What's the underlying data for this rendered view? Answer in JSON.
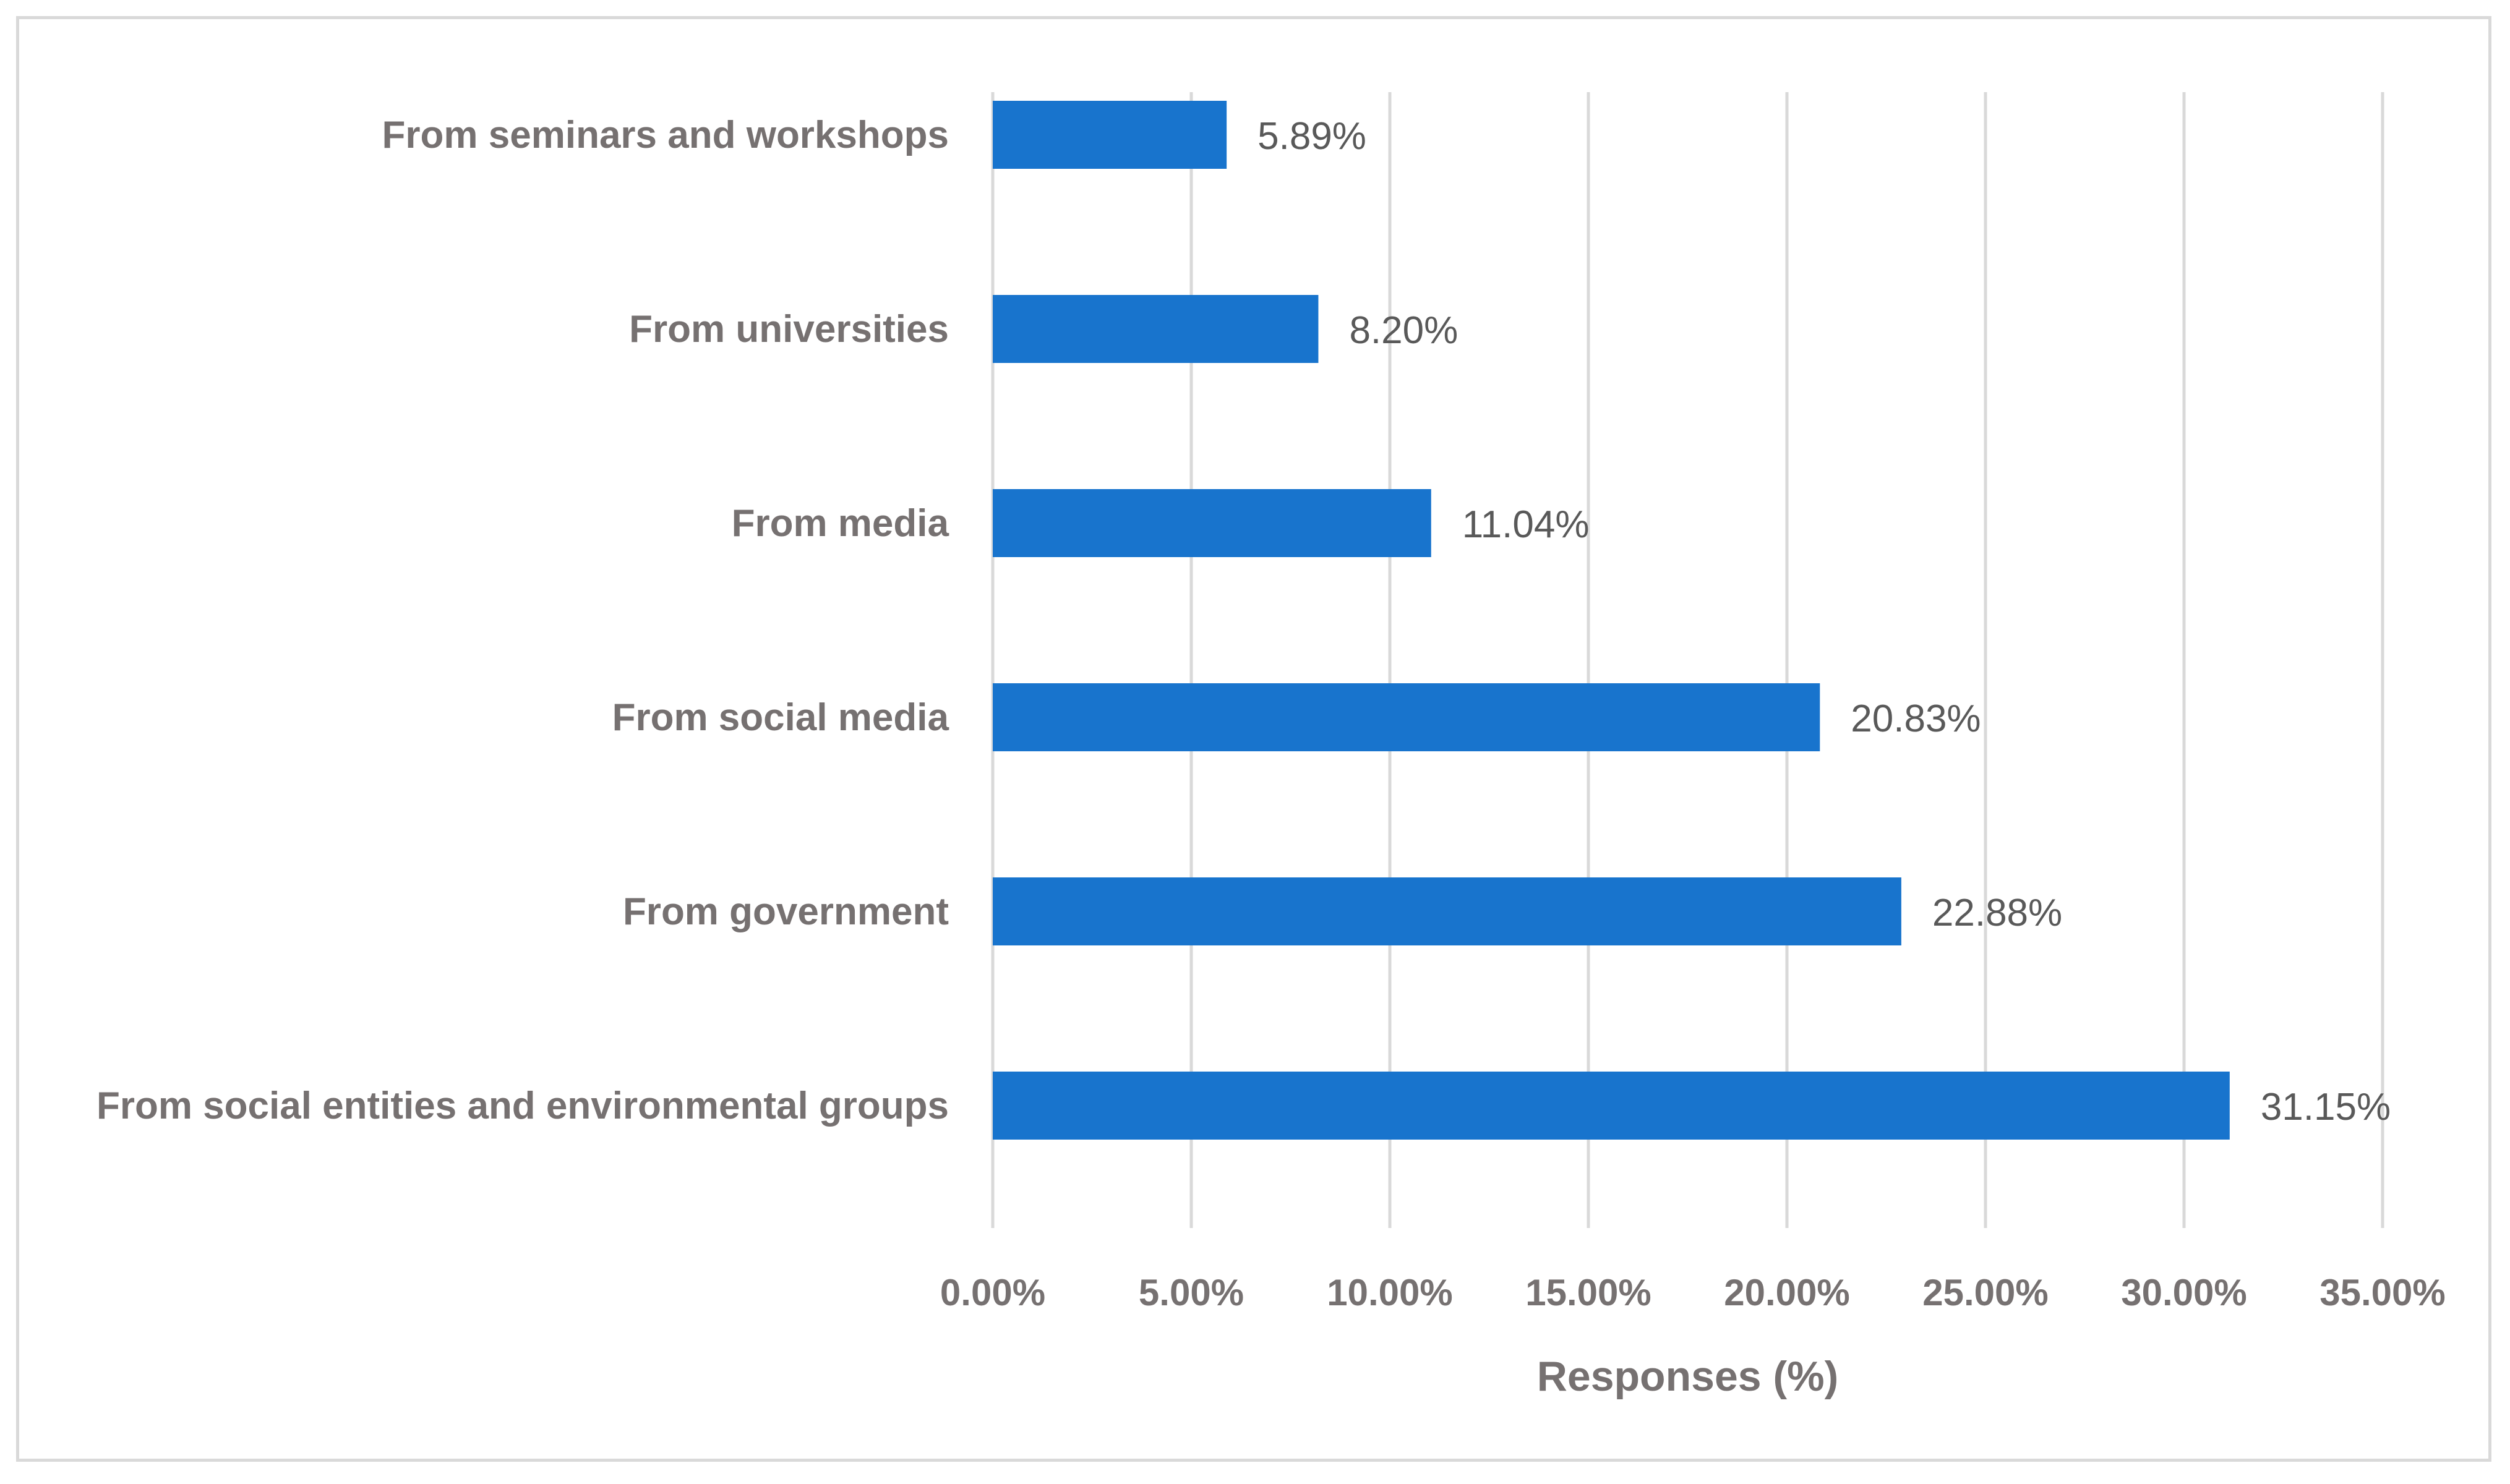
{
  "chart_data": {
    "type": "bar",
    "orientation": "horizontal",
    "categories": [
      "From seminars and workshops",
      "From universities",
      "From media",
      "From social media",
      "From government",
      "From social entities and environmental groups"
    ],
    "values": [
      5.89,
      8.2,
      11.04,
      20.83,
      22.88,
      31.15
    ],
    "value_labels": [
      "5.89%",
      "8.20%",
      "11.04%",
      "20.83%",
      "22.88%",
      "31.15%"
    ],
    "xlabel": "Responses (%)",
    "ylabel": "",
    "xlim": [
      0,
      35
    ],
    "xticks": [
      0,
      5,
      10,
      15,
      20,
      25,
      30,
      35
    ],
    "xtick_labels": [
      "0.00%",
      "5.00%",
      "10.00%",
      "15.00%",
      "20.00%",
      "25.00%",
      "30.00%",
      "35.00%"
    ],
    "grid": "vertical",
    "legend": "none",
    "colors": {
      "bar": "#1874CD",
      "grid": "#d9d9d9",
      "label": "#767171",
      "value": "#595959"
    }
  }
}
